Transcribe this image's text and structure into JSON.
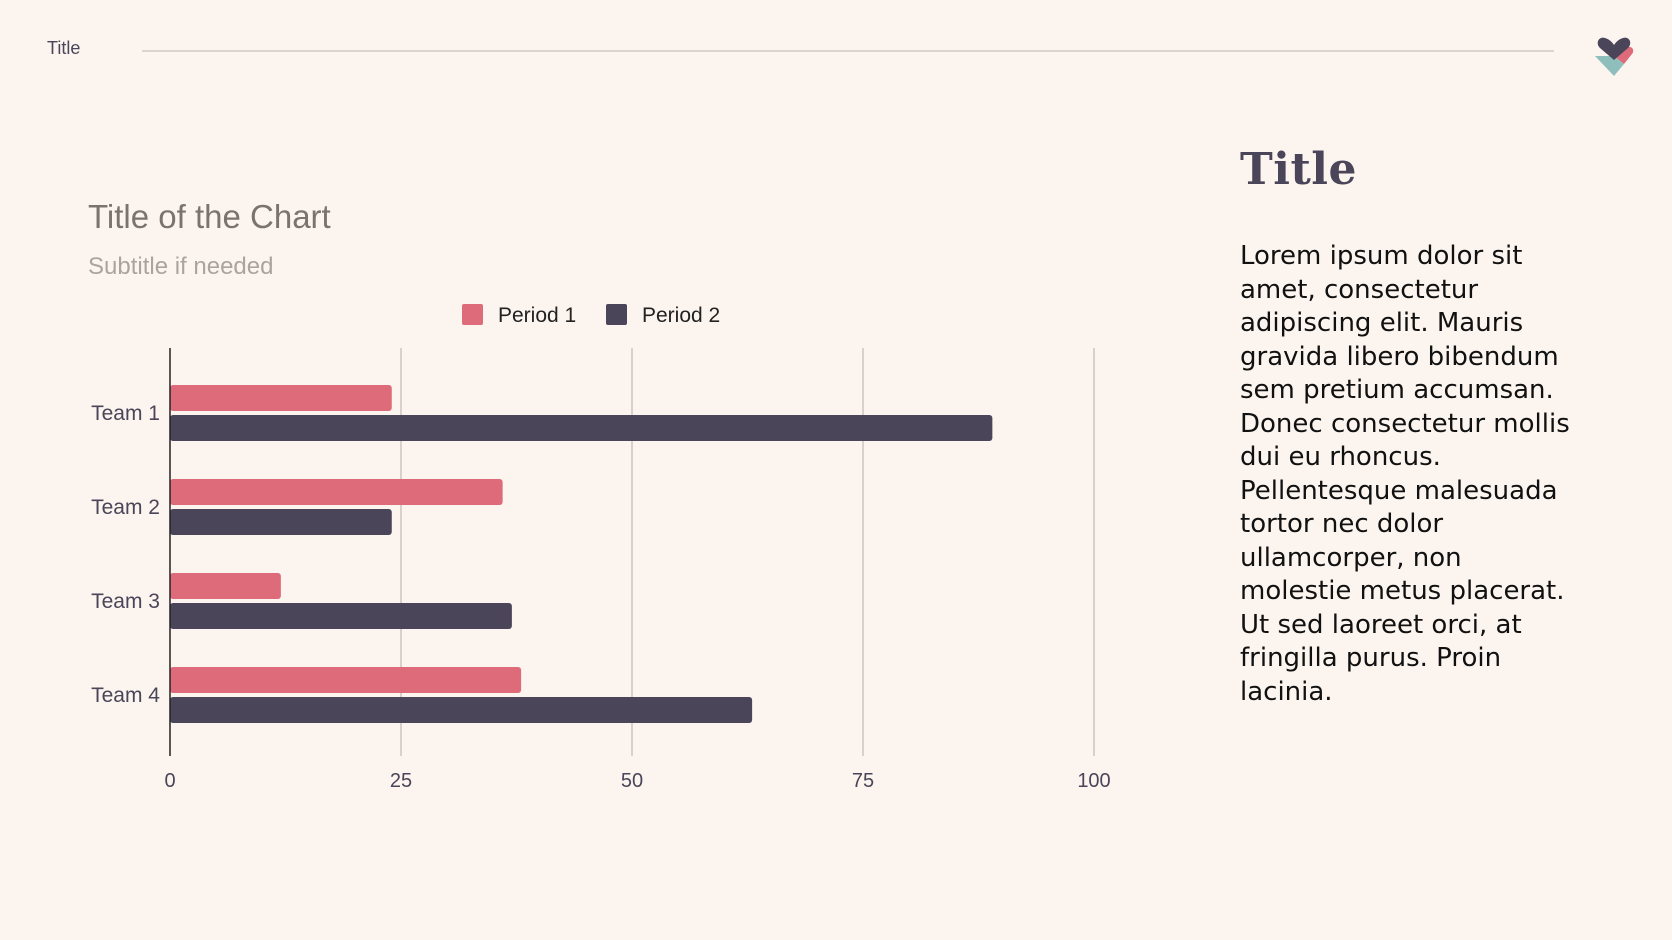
{
  "header": {
    "title": "Title"
  },
  "side_panel": {
    "title": "Title",
    "body": "Lorem ipsum dolor sit amet, consectetur adipiscing elit. Mauris gravida libero bibendum sem pretium accumsan. Donec consectetur mollis dui eu rhoncus. Pellentesque malesuada tortor nec dolor ullamcorper, non molestie metus placerat. Ut sed laoreet orci, at fringilla purus. Proin lacinia."
  },
  "logo": {
    "icon": "heart-logo-icon",
    "colors": [
      "#4a4558",
      "#dd6b7a",
      "#8fbfbd"
    ]
  },
  "colors": {
    "background": "#fcf5ef",
    "period1": "#dd6b7a",
    "period2": "#4a4558",
    "grid": "#c9c5c1",
    "axis": "#222222",
    "text": "#4a4558"
  },
  "chart_data": {
    "type": "bar",
    "orientation": "horizontal",
    "title": "Title of the Chart",
    "subtitle": "Subtitle if needed",
    "categories": [
      "Team 1",
      "Team 2",
      "Team 3",
      "Team 4"
    ],
    "series": [
      {
        "name": "Period 1",
        "color": "#dd6b7a",
        "values": [
          24,
          36,
          12,
          38
        ]
      },
      {
        "name": "Period 2",
        "color": "#4a4558",
        "values": [
          89,
          24,
          37,
          63
        ]
      }
    ],
    "xlim": [
      0,
      100
    ],
    "xticks": [
      "0",
      "25",
      "50",
      "75",
      "100"
    ],
    "xtick_values": [
      0,
      25,
      50,
      75,
      100
    ],
    "grid": true,
    "legend_position": "top"
  }
}
